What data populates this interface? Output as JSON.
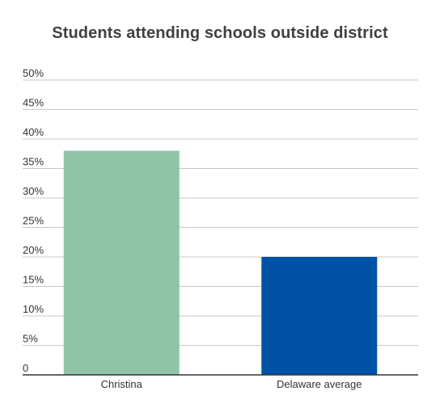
{
  "chart_data": {
    "type": "bar",
    "title": "Students attending schools outside district",
    "categories": [
      "Christina",
      "Delaware average"
    ],
    "values": [
      38,
      20
    ],
    "colors": [
      "#8fc4a9",
      "#0052a5"
    ],
    "ylim": [
      0,
      50
    ],
    "y_ticks": [
      0,
      5,
      10,
      15,
      20,
      25,
      30,
      35,
      40,
      45,
      50
    ],
    "y_tick_labels": [
      "0",
      "5%",
      "10%",
      "15%",
      "20%",
      "25%",
      "30%",
      "35%",
      "40%",
      "45%",
      "50%"
    ],
    "grid": true,
    "xlabel": "",
    "ylabel": ""
  }
}
